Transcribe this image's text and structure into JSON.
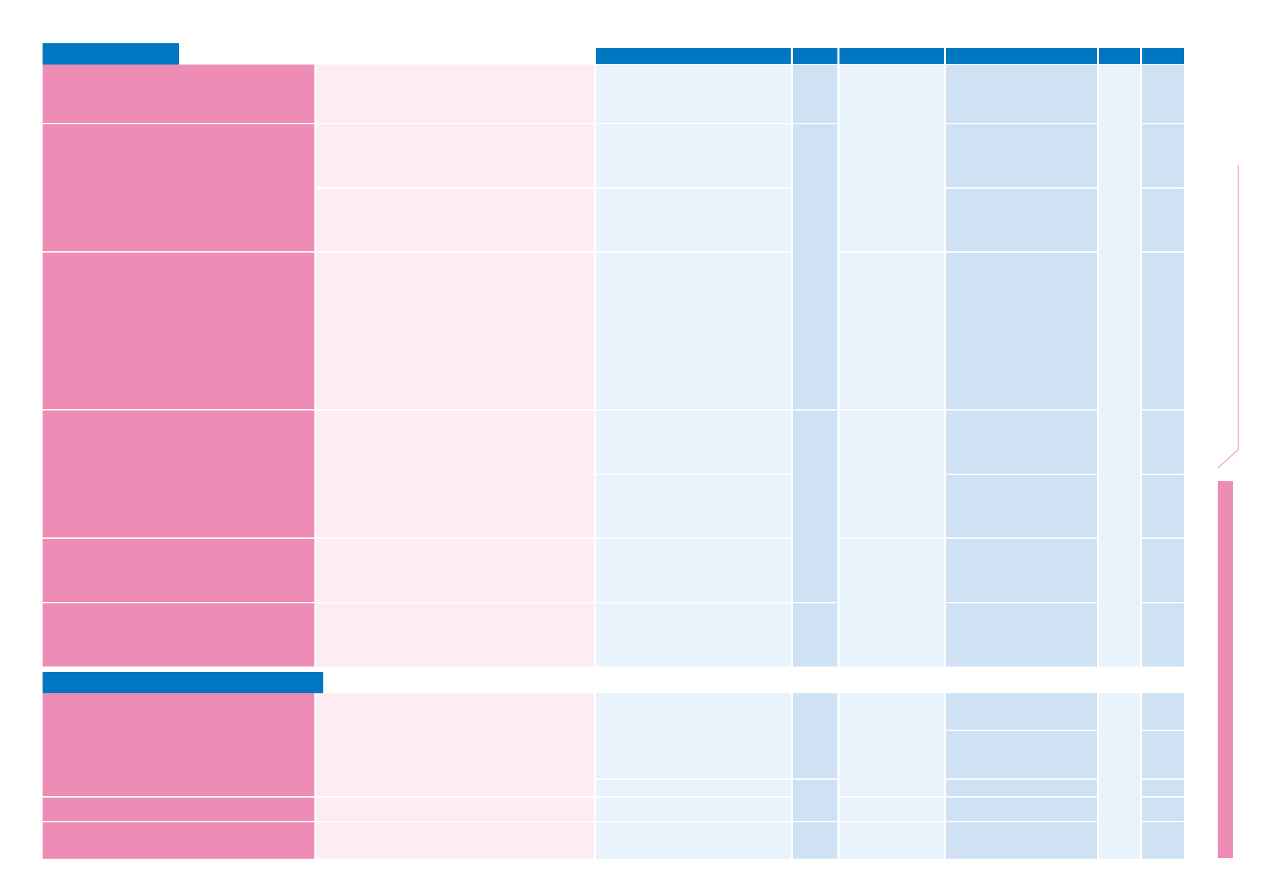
{
  "colors": {
    "header_blue": "#0077c0",
    "pink": "#ed8db5",
    "light_pink": "#fdedf2",
    "light_blue": "#e8f3fc",
    "mid_blue": "#cfe2f4"
  },
  "section_1": {
    "title": "",
    "column_headers": [
      "",
      "",
      "",
      "",
      "",
      ""
    ]
  },
  "section_2": {
    "title": ""
  }
}
